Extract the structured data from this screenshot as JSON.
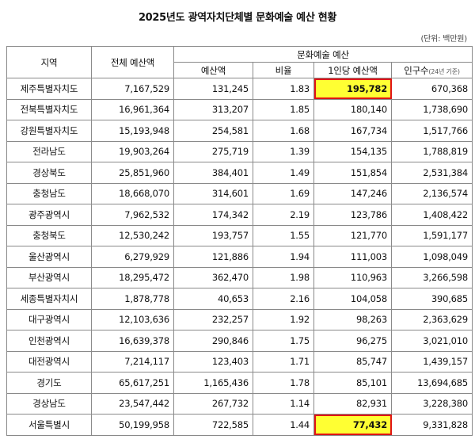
{
  "title": "2025년도 광역자치단체별 문화예술 예산 현황",
  "unit": "(단위: 백만원)",
  "headers": {
    "region": "지역",
    "total": "전체 예산액",
    "culture_group": "문화예술 예산",
    "culture_budget": "예산액",
    "ratio": "비율",
    "per_capita": "1인당 예산액",
    "population": "인구수",
    "population_note": "(24년 기준)"
  },
  "highlight_color": "#ffff33",
  "highlight_border": "#e01515",
  "rows": [
    {
      "region": "제주특별자치도",
      "total": "7,167,529",
      "culture": "131,245",
      "ratio": "1.83",
      "per_capita": "195,782",
      "population": "670,368",
      "highlight": true
    },
    {
      "region": "전북특별자치도",
      "total": "16,961,364",
      "culture": "313,207",
      "ratio": "1.85",
      "per_capita": "180,140",
      "population": "1,738,690",
      "highlight": false
    },
    {
      "region": "강원특별자치도",
      "total": "15,193,948",
      "culture": "254,581",
      "ratio": "1.68",
      "per_capita": "167,734",
      "population": "1,517,766",
      "highlight": false
    },
    {
      "region": "전라남도",
      "total": "19,903,264",
      "culture": "275,719",
      "ratio": "1.39",
      "per_capita": "154,135",
      "population": "1,788,819",
      "highlight": false
    },
    {
      "region": "경상북도",
      "total": "25,851,960",
      "culture": "384,401",
      "ratio": "1.49",
      "per_capita": "151,854",
      "population": "2,531,384",
      "highlight": false
    },
    {
      "region": "충청남도",
      "total": "18,668,070",
      "culture": "314,601",
      "ratio": "1.69",
      "per_capita": "147,246",
      "population": "2,136,574",
      "highlight": false
    },
    {
      "region": "광주광역시",
      "total": "7,962,532",
      "culture": "174,342",
      "ratio": "2.19",
      "per_capita": "123,786",
      "population": "1,408,422",
      "highlight": false
    },
    {
      "region": "충청북도",
      "total": "12,530,242",
      "culture": "193,757",
      "ratio": "1.55",
      "per_capita": "121,770",
      "population": "1,591,177",
      "highlight": false
    },
    {
      "region": "울산광역시",
      "total": "6,279,929",
      "culture": "121,886",
      "ratio": "1.94",
      "per_capita": "111,003",
      "population": "1,098,049",
      "highlight": false
    },
    {
      "region": "부산광역시",
      "total": "18,295,472",
      "culture": "362,470",
      "ratio": "1.98",
      "per_capita": "110,963",
      "population": "3,266,598",
      "highlight": false
    },
    {
      "region": "세종특별자치시",
      "total": "1,878,778",
      "culture": "40,653",
      "ratio": "2.16",
      "per_capita": "104,058",
      "population": "390,685",
      "highlight": false
    },
    {
      "region": "대구광역시",
      "total": "12,103,636",
      "culture": "232,257",
      "ratio": "1.92",
      "per_capita": "98,263",
      "population": "2,363,629",
      "highlight": false
    },
    {
      "region": "인천광역시",
      "total": "16,639,378",
      "culture": "290,846",
      "ratio": "1.75",
      "per_capita": "96,275",
      "population": "3,021,010",
      "highlight": false
    },
    {
      "region": "대전광역시",
      "total": "7,214,117",
      "culture": "123,403",
      "ratio": "1.71",
      "per_capita": "85,747",
      "population": "1,439,157",
      "highlight": false
    },
    {
      "region": "경기도",
      "total": "65,617,251",
      "culture": "1,165,436",
      "ratio": "1.78",
      "per_capita": "85,101",
      "population": "13,694,685",
      "highlight": false
    },
    {
      "region": "경상남도",
      "total": "23,547,442",
      "culture": "267,732",
      "ratio": "1.14",
      "per_capita": "82,931",
      "population": "3,228,380",
      "highlight": false
    },
    {
      "region": "서울특별시",
      "total": "50,199,958",
      "culture": "722,585",
      "ratio": "1.44",
      "per_capita": "77,432",
      "population": "9,331,828",
      "highlight": true
    }
  ]
}
